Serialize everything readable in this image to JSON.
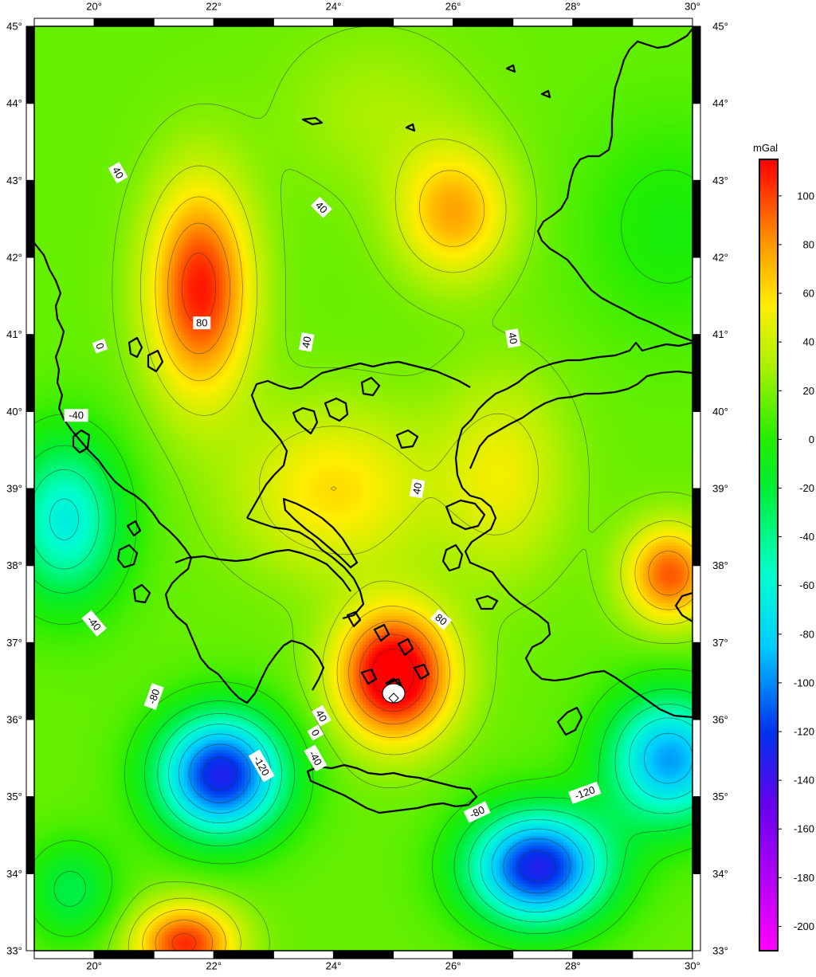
{
  "map": {
    "lon_range": [
      19,
      30
    ],
    "lat_range": [
      33,
      45
    ],
    "lon_ticks": [
      "20°",
      "22°",
      "24°",
      "26°",
      "28°",
      "30°"
    ],
    "lat_ticks": [
      "45°",
      "44°",
      "43°",
      "42°",
      "41°",
      "40°",
      "39°",
      "38°",
      "37°",
      "36°",
      "35°",
      "34°",
      "33°"
    ],
    "contour_interval_mgal": 20,
    "contour_labels": [
      {
        "text": "40",
        "lon": 20.4,
        "lat": 43.1,
        "rot": 60
      },
      {
        "text": "40",
        "lon": 23.8,
        "lat": 42.65,
        "rot": 45
      },
      {
        "text": "80",
        "lon": 21.8,
        "lat": 41.15,
        "rot": 0
      },
      {
        "text": "0",
        "lon": 20.1,
        "lat": 40.85,
        "rot": 70
      },
      {
        "text": "40",
        "lon": 23.55,
        "lat": 40.9,
        "rot": -80
      },
      {
        "text": "40",
        "lon": 27.0,
        "lat": 40.95,
        "rot": 80
      },
      {
        "text": "-40",
        "lon": 19.7,
        "lat": 39.95,
        "rot": 0
      },
      {
        "text": "40",
        "lon": 25.4,
        "lat": 39.0,
        "rot": -80
      },
      {
        "text": "-40",
        "lon": 20.0,
        "lat": 37.25,
        "rot": 50
      },
      {
        "text": "80",
        "lon": 25.8,
        "lat": 37.3,
        "rot": 40
      },
      {
        "text": "-80",
        "lon": 21.0,
        "lat": 36.3,
        "rot": -70
      },
      {
        "text": "40",
        "lon": 23.8,
        "lat": 36.05,
        "rot": 60
      },
      {
        "text": "0",
        "lon": 23.7,
        "lat": 35.83,
        "rot": 60
      },
      {
        "text": "-40",
        "lon": 23.7,
        "lat": 35.5,
        "rot": 60
      },
      {
        "text": "-120",
        "lon": 22.8,
        "lat": 35.4,
        "rot": 60
      },
      {
        "text": "-80",
        "lon": 26.4,
        "lat": 34.8,
        "rot": -25
      },
      {
        "text": "-120",
        "lon": 28.2,
        "lat": 35.05,
        "rot": -20
      }
    ],
    "grid_sources": [
      {
        "lon": 21.75,
        "lat": 41.6,
        "value": 95,
        "sx": 0.8,
        "sy": 1.3
      },
      {
        "lon": 25.0,
        "lat": 36.6,
        "value": 120,
        "sx": 0.9,
        "sy": 0.8
      },
      {
        "lon": 22.1,
        "lat": 35.3,
        "value": -145,
        "sx": 1.0,
        "sy": 0.75
      },
      {
        "lon": 27.4,
        "lat": 34.1,
        "value": -145,
        "sx": 1.1,
        "sy": 0.7
      },
      {
        "lon": 29.6,
        "lat": 35.5,
        "value": -110,
        "sx": 1.0,
        "sy": 0.8
      },
      {
        "lon": 19.5,
        "lat": 38.6,
        "value": -80,
        "sx": 0.9,
        "sy": 1.0
      },
      {
        "lon": 29.6,
        "lat": 42.4,
        "value": -20,
        "sx": 1.4,
        "sy": 1.3
      },
      {
        "lon": 24.7,
        "lat": 43.9,
        "value": 15,
        "sx": 1.5,
        "sy": 1.0
      },
      {
        "lon": 29.6,
        "lat": 37.9,
        "value": 80,
        "sx": 0.7,
        "sy": 0.6
      },
      {
        "lon": 21.5,
        "lat": 33.1,
        "value": 90,
        "sx": 0.8,
        "sy": 0.5
      },
      {
        "lon": 26.0,
        "lat": 42.6,
        "value": 60,
        "sx": 0.9,
        "sy": 0.8
      },
      {
        "lon": 24.0,
        "lat": 39.0,
        "value": 45,
        "sx": 1.5,
        "sy": 1.0
      },
      {
        "lon": 26.8,
        "lat": 39.2,
        "value": 35,
        "sx": 1.0,
        "sy": 1.2
      },
      {
        "lon": 19.6,
        "lat": 33.8,
        "value": -40,
        "sx": 0.7,
        "sy": 0.6
      }
    ]
  },
  "colorbar": {
    "unit": "mGal",
    "min": -210,
    "max": 115,
    "ticks": [
      "100",
      "80",
      "60",
      "40",
      "20",
      "0",
      "-20",
      "-40",
      "-60",
      "-80",
      "-100",
      "-120",
      "-140",
      "-160",
      "-180",
      "-200"
    ],
    "tick_values": [
      100,
      80,
      60,
      40,
      20,
      0,
      -20,
      -40,
      -60,
      -80,
      -100,
      -120,
      -140,
      -160,
      -180,
      -200
    ],
    "stops": [
      {
        "v": -210,
        "c": "#ff00ff"
      },
      {
        "v": -150,
        "c": "#6600ee"
      },
      {
        "v": -120,
        "c": "#0033ee"
      },
      {
        "v": -85,
        "c": "#00ccff"
      },
      {
        "v": -55,
        "c": "#00ffcc"
      },
      {
        "v": -20,
        "c": "#00ee33"
      },
      {
        "v": 0,
        "c": "#22ee00"
      },
      {
        "v": 30,
        "c": "#aaf000"
      },
      {
        "v": 55,
        "c": "#ffee00"
      },
      {
        "v": 80,
        "c": "#ff9900"
      },
      {
        "v": 115,
        "c": "#ff0000"
      }
    ]
  }
}
